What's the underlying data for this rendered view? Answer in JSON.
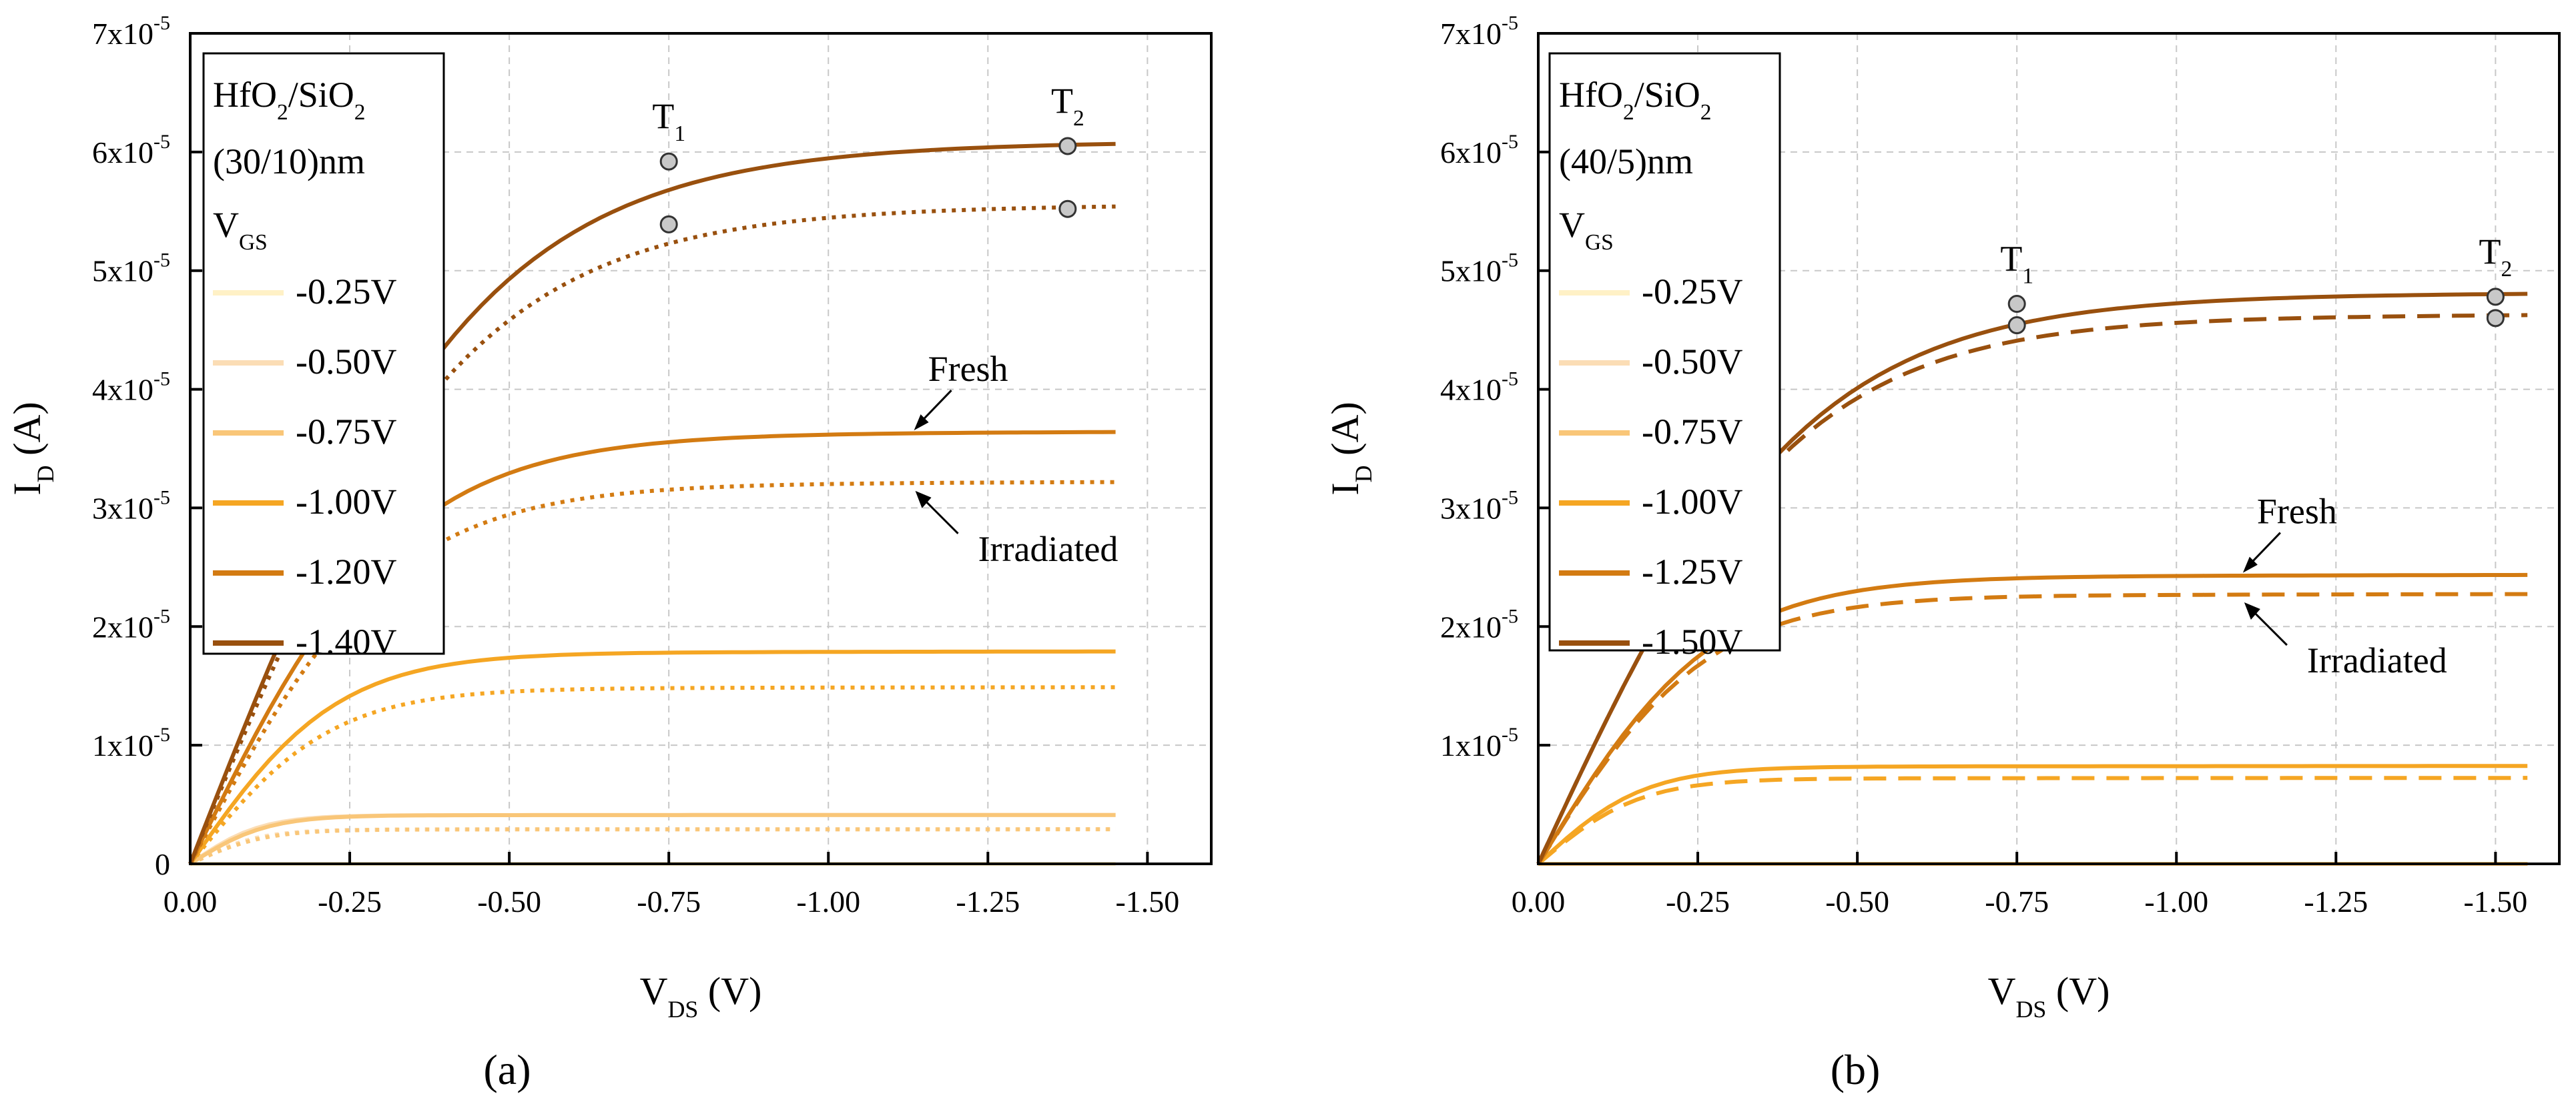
{
  "figure": {
    "panels": [
      "a",
      "b"
    ]
  },
  "chart_data": [
    {
      "type": "line",
      "panel_label": "a",
      "panel_label_display": "(a)",
      "xlabel": "V",
      "xlabel_sub": "DS",
      "xlabel_unit": " (V)",
      "ylabel": "I",
      "ylabel_sub": "D",
      "ylabel_unit": " (A)",
      "xlim": [
        0,
        -1.6
      ],
      "ylim": [
        0,
        7e-05
      ],
      "x_ticks": [
        0,
        -0.25,
        -0.5,
        -0.75,
        -1.0,
        -1.25,
        -1.5
      ],
      "x_tick_labels": [
        "0.00",
        "-0.25",
        "-0.50",
        "-0.75",
        "-1.00",
        "-1.25",
        "-1.50"
      ],
      "y_ticks": [
        0,
        1e-05,
        2e-05,
        3e-05,
        4e-05,
        5e-05,
        6e-05,
        7e-05
      ],
      "y_tick_labels": [
        "0",
        "1x10",
        "2x10",
        "3x10",
        "4x10",
        "5x10",
        "6x10",
        "7x10"
      ],
      "y_tick_exp": "-5",
      "grid": true,
      "x_end": -1.45,
      "legend": {
        "title_line1": "HfO2/SiO2",
        "title_line1_parts": [
          "HfO",
          "2",
          "/SiO",
          "2"
        ],
        "title_line2": "(30/10)nm",
        "title_line3": "V",
        "title_line3_sub": "GS",
        "placement": "top-left"
      },
      "series": [
        {
          "name": "-0.25V",
          "color": "#FFF1C6",
          "fresh_sat": 0.0,
          "irr_sat": 0.0,
          "vsat": 0.1
        },
        {
          "name": "-0.50V",
          "color": "#FBDDB5",
          "fresh_sat": 4.1e-06,
          "irr_sat": 2.9e-06,
          "vsat": 0.2
        },
        {
          "name": "-0.75V",
          "color": "#F9C678",
          "fresh_sat": 4.1e-06,
          "irr_sat": 2.9e-06,
          "vsat": 0.22
        },
        {
          "name": "-1.00V",
          "color": "#F5A623",
          "fresh_sat": 1.78e-05,
          "irr_sat": 1.48e-05,
          "vsat": 0.42
        },
        {
          "name": "-1.20V",
          "color": "#D37B12",
          "fresh_sat": 3.62e-05,
          "irr_sat": 3.2e-05,
          "vsat": 0.6
        },
        {
          "name": "-1.40V",
          "color": "#99500E",
          "fresh_sat": 6.05e-05,
          "irr_sat": 5.52e-05,
          "vsat": 0.8
        }
      ],
      "irradiated_style": "dotted",
      "markers": [
        {
          "x": -0.75,
          "y": 5.92e-05
        },
        {
          "x": -0.75,
          "y": 5.39e-05
        },
        {
          "x": -1.375,
          "y": 6.05e-05
        },
        {
          "x": -1.375,
          "y": 5.52e-05
        }
      ],
      "marker_labels": [
        {
          "text": "T",
          "sub": "1",
          "x": -0.75
        },
        {
          "text": "T",
          "sub": "2",
          "x": -1.375
        }
      ],
      "annotations": {
        "fresh": "Fresh",
        "irradiated": "Irradiated"
      }
    },
    {
      "type": "line",
      "panel_label": "b",
      "panel_label_display": "(b)",
      "xlabel": "V",
      "xlabel_sub": "DS",
      "xlabel_unit": " (V)",
      "ylabel": "I",
      "ylabel_sub": "D",
      "ylabel_unit": " (A)",
      "xlim": [
        0,
        -1.6
      ],
      "ylim": [
        0,
        7e-05
      ],
      "x_ticks": [
        0,
        -0.25,
        -0.5,
        -0.75,
        -1.0,
        -1.25,
        -1.5
      ],
      "x_tick_labels": [
        "0.00",
        "-0.25",
        "-0.50",
        "-0.75",
        "-1.00",
        "-1.25",
        "-1.50"
      ],
      "y_ticks": [
        1e-05,
        2e-05,
        3e-05,
        4e-05,
        5e-05,
        6e-05,
        7e-05
      ],
      "y_tick_labels": [
        "1x10",
        "2x10",
        "3x10",
        "4x10",
        "5x10",
        "6x10",
        "7x10"
      ],
      "y_tick_exp": "-5",
      "grid": true,
      "x_end": -1.55,
      "legend": {
        "title_line1": "HfO2/SiO2",
        "title_line1_parts": [
          "HfO",
          "2",
          "/SiO",
          "2"
        ],
        "title_line2": "(40/5)nm",
        "title_line3": "V",
        "title_line3_sub": "GS",
        "placement": "top-left"
      },
      "series": [
        {
          "name": "-0.25V",
          "color": "#FFF1C6",
          "fresh_sat": 0.0,
          "irr_sat": 0.0,
          "vsat": 0.1
        },
        {
          "name": "-0.50V",
          "color": "#FBDDB5",
          "fresh_sat": 0.0,
          "irr_sat": 0.0,
          "vsat": 0.1
        },
        {
          "name": "-0.75V",
          "color": "#F9C678",
          "fresh_sat": 0.0,
          "irr_sat": 0.0,
          "vsat": 0.1
        },
        {
          "name": "-1.00V",
          "color": "#F5A623",
          "fresh_sat": 8.2e-06,
          "irr_sat": 7.2e-06,
          "vsat": 0.3
        },
        {
          "name": "-1.25V",
          "color": "#D37B12",
          "fresh_sat": 2.42e-05,
          "irr_sat": 2.26e-05,
          "vsat": 0.5
        },
        {
          "name": "-1.50V",
          "color": "#99500E",
          "fresh_sat": 4.78e-05,
          "irr_sat": 4.6e-05,
          "vsat": 0.75
        }
      ],
      "irradiated_style": "dashed",
      "markers": [
        {
          "x": -0.75,
          "y": 4.72e-05
        },
        {
          "x": -0.75,
          "y": 4.54e-05
        },
        {
          "x": -1.5,
          "y": 4.78e-05
        },
        {
          "x": -1.5,
          "y": 4.6e-05
        }
      ],
      "marker_labels": [
        {
          "text": "T",
          "sub": "1",
          "x": -0.75
        },
        {
          "text": "T",
          "sub": "2",
          "x": -1.5
        }
      ],
      "annotations": {
        "fresh": "Fresh",
        "irradiated": "Irradiated"
      }
    }
  ]
}
